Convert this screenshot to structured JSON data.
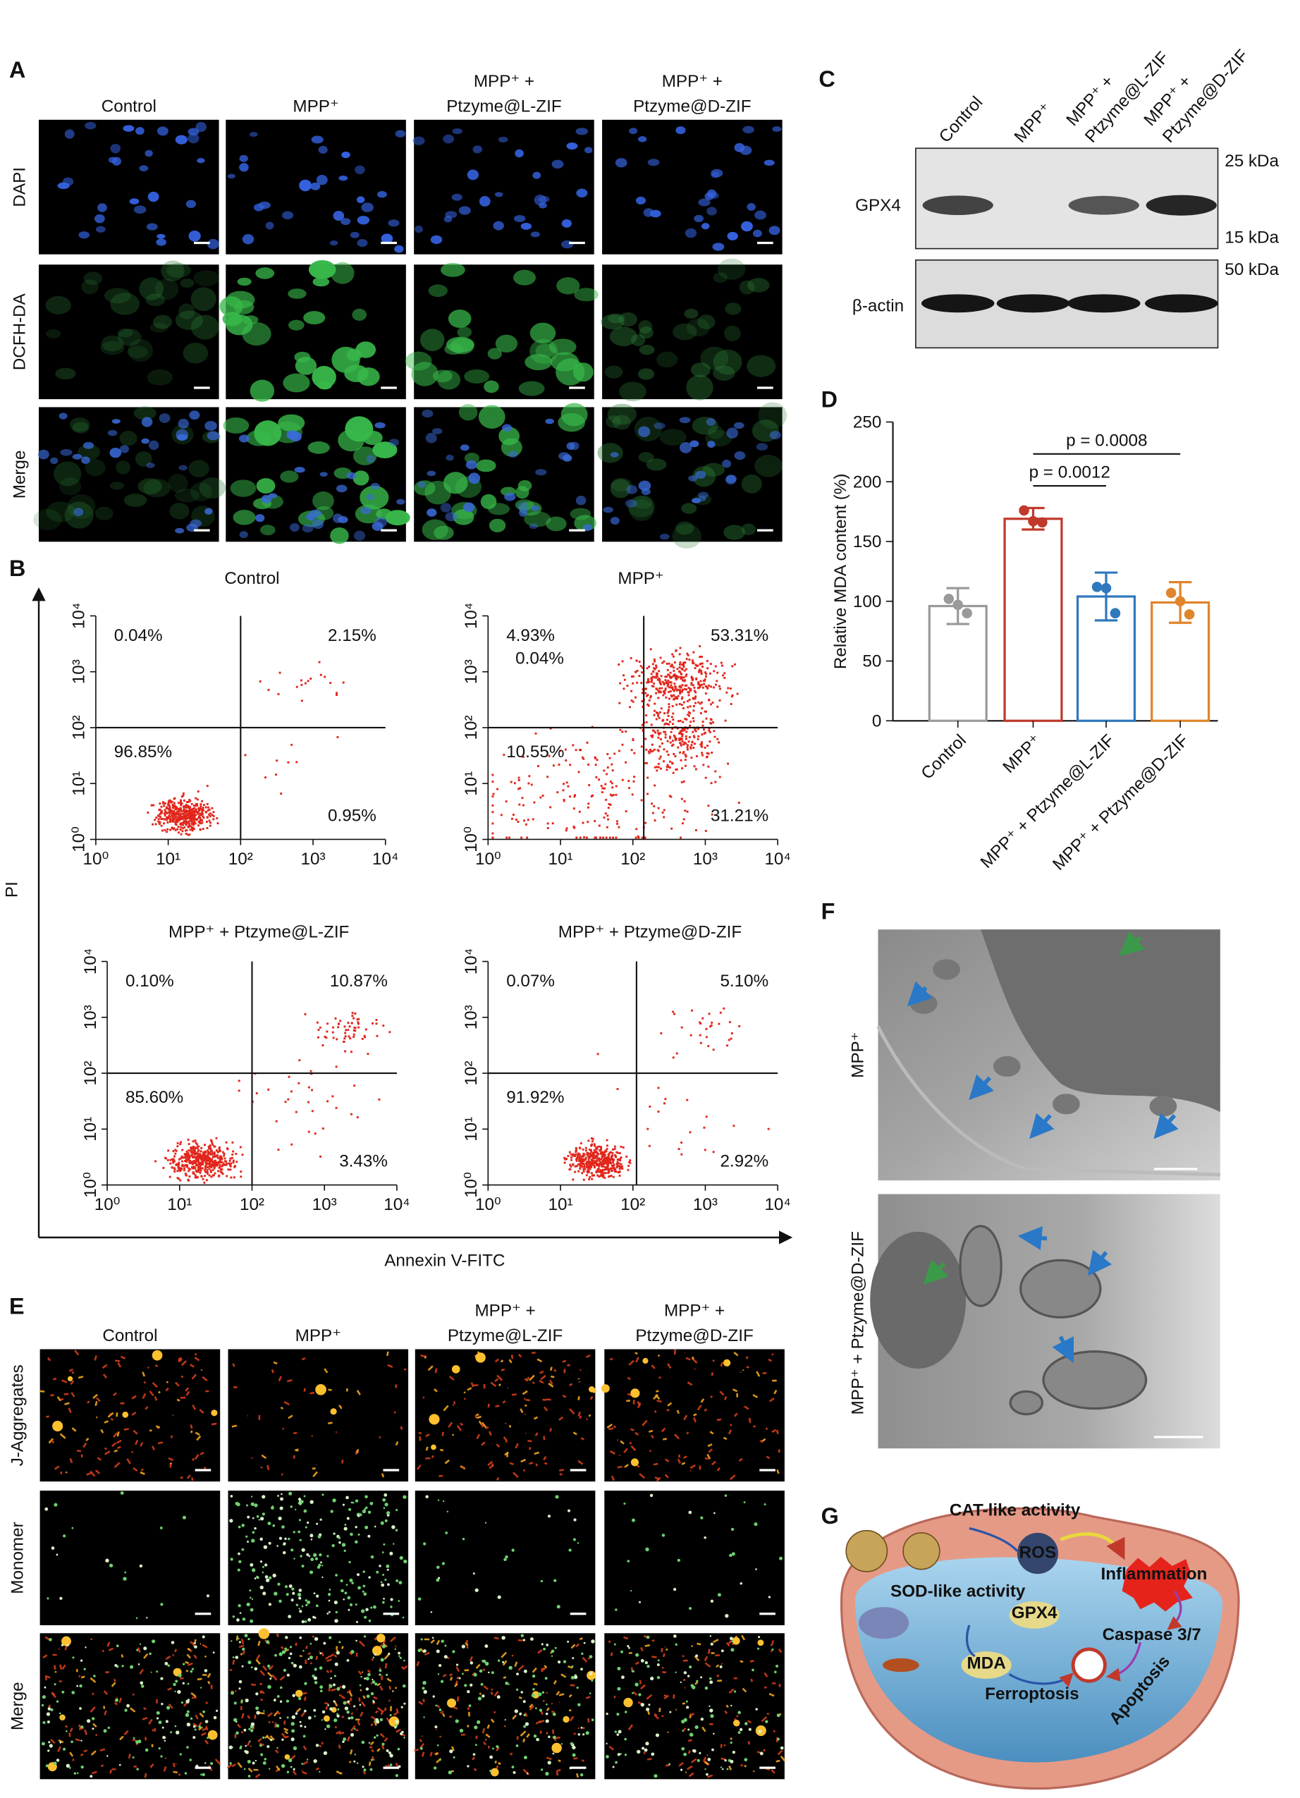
{
  "panel_labels": [
    "A",
    "B",
    "C",
    "D",
    "E",
    "F",
    "G"
  ],
  "panel_a": {
    "columns": [
      [
        "Control"
      ],
      [
        "MPP⁺"
      ],
      [
        "MPP⁺ +",
        "Ptzyme@L-ZIF"
      ],
      [
        "MPP⁺ +",
        "Ptzyme@D-ZIF"
      ]
    ],
    "rows": [
      "DAPI",
      "DCFH-DA",
      "Merge"
    ]
  },
  "panel_b": {
    "y_axis": "PI",
    "x_axis": "Annexin V-FITC",
    "tick_labels": [
      "10⁰",
      "10¹",
      "10²",
      "10³",
      "10⁴"
    ],
    "plots": [
      {
        "title": "Control",
        "quadrants": [
          "0.04%",
          "2.15%",
          "96.85%",
          "0.95%"
        ]
      },
      {
        "title": "MPP⁺",
        "quadrants": [
          "4.93%",
          "53.31%",
          "10.55%",
          "31.21%"
        ],
        "extra_label": "0.04%"
      },
      {
        "title": "MPP⁺ + Ptzyme@L-ZIF",
        "quadrants": [
          "0.10%",
          "10.87%",
          "85.60%",
          "3.43%"
        ]
      },
      {
        "title": "MPP⁺ + Ptzyme@D-ZIF",
        "quadrants": [
          "0.07%",
          "5.10%",
          "91.92%",
          "2.92%"
        ]
      }
    ]
  },
  "panel_c": {
    "lanes": [
      [
        "Control"
      ],
      [
        "MPP⁺"
      ],
      [
        "MPP⁺ +",
        "Ptzyme@L-ZIF"
      ],
      [
        "MPP⁺ +",
        "Ptzyme@D-ZIF"
      ]
    ],
    "bands": [
      "GPX4",
      "β-actin"
    ],
    "markers": [
      "25 kDa",
      "15 kDa",
      "50 kDa"
    ]
  },
  "chart_data": {
    "type": "bar",
    "y_label": "Relative MDA content (%)",
    "categories": [
      "Control",
      "MPP⁺",
      "MPP⁺ + Ptzyme@L-ZIF",
      "MPP⁺ + Ptzyme@D-ZIF"
    ],
    "values": [
      96,
      169,
      104,
      99
    ],
    "errors": [
      15,
      9,
      20,
      17
    ],
    "points": [
      [
        102,
        90,
        97
      ],
      [
        176,
        166,
        167
      ],
      [
        112,
        90,
        111
      ],
      [
        107,
        89,
        100
      ]
    ],
    "colors": [
      "#9a9a9a",
      "#c0392b",
      "#2f78bd",
      "#e0852b"
    ],
    "ylim": [
      0,
      250
    ],
    "yticks": [
      0,
      50,
      100,
      150,
      200,
      250
    ],
    "comparisons": [
      {
        "label": "p = 0.0012",
        "from": 1,
        "to": 2
      },
      {
        "label": "p = 0.0008",
        "from": 1,
        "to": 3
      }
    ]
  },
  "panel_e": {
    "columns": [
      [
        "Control"
      ],
      [
        "MPP⁺"
      ],
      [
        "MPP⁺ +",
        "Ptzyme@L-ZIF"
      ],
      [
        "MPP⁺ +",
        "Ptzyme@D-ZIF"
      ]
    ],
    "rows": [
      "J-Aggregates",
      "Monomer",
      "Merge"
    ]
  },
  "panel_f": {
    "rows": [
      "MPP⁺",
      "MPP⁺ + Ptzyme@D-ZIF"
    ]
  },
  "panel_g": {
    "labels": [
      "CAT-like activity",
      "ROS",
      "Inflammation",
      "SOD-like activity",
      "GPX4",
      "Caspase 3/7",
      "MDA",
      "Ferroptosis",
      "Apoptosis"
    ]
  }
}
